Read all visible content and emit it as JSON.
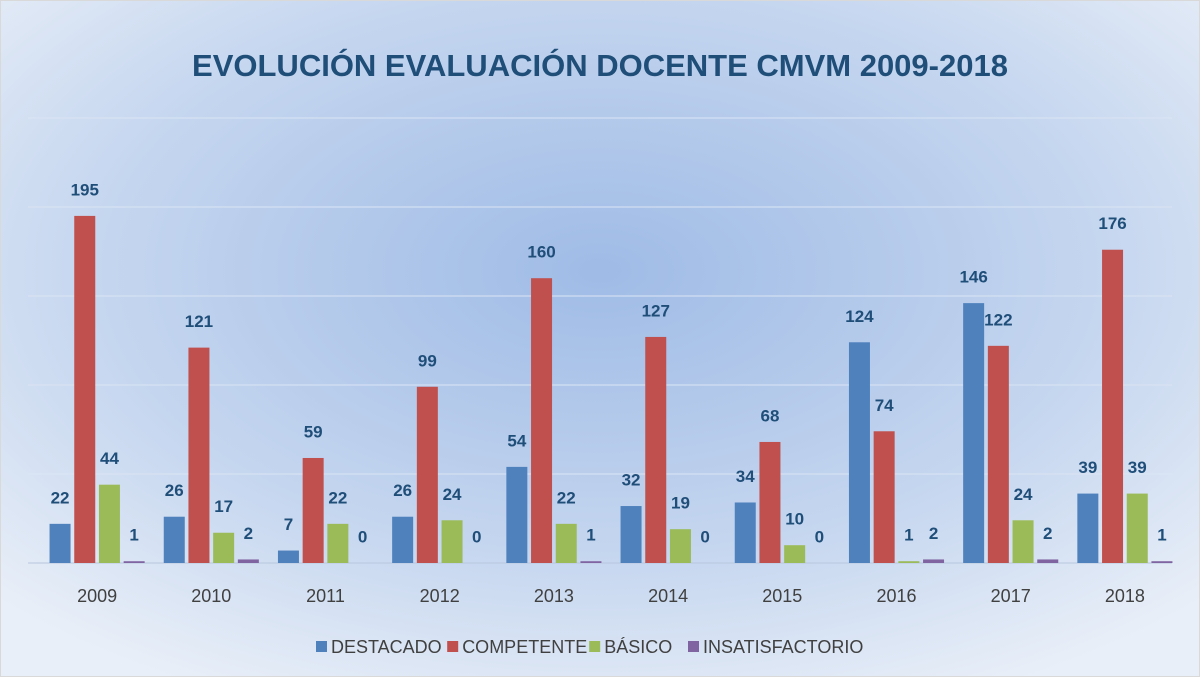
{
  "chart_data": {
    "type": "bar",
    "title": "EVOLUCIÓN  EVALUACIÓN  DOCENTE  CMVM  2009-2018",
    "categories": [
      "2009",
      "2010",
      "2011",
      "2012",
      "2013",
      "2014",
      "2015",
      "2016",
      "2017",
      "2018"
    ],
    "series": [
      {
        "name": "DESTACADO",
        "color": "#4f81bd",
        "values": [
          22,
          26,
          7,
          26,
          54,
          32,
          34,
          124,
          146,
          39
        ]
      },
      {
        "name": "COMPETENTE",
        "color": "#c0504d",
        "values": [
          195,
          121,
          59,
          99,
          160,
          127,
          68,
          74,
          122,
          176
        ]
      },
      {
        "name": "BÁSICO",
        "color": "#9bbb59",
        "values": [
          44,
          17,
          22,
          24,
          22,
          19,
          10,
          1,
          24,
          39
        ]
      },
      {
        "name": "INSATISFACTORIO",
        "color": "#8064a2",
        "values": [
          1,
          2,
          0,
          0,
          1,
          0,
          0,
          2,
          2,
          1
        ]
      }
    ],
    "ylim": [
      0,
      250
    ],
    "yticks": [
      0,
      50,
      100,
      150,
      200,
      250
    ],
    "grid": true,
    "legend": "bottom"
  }
}
